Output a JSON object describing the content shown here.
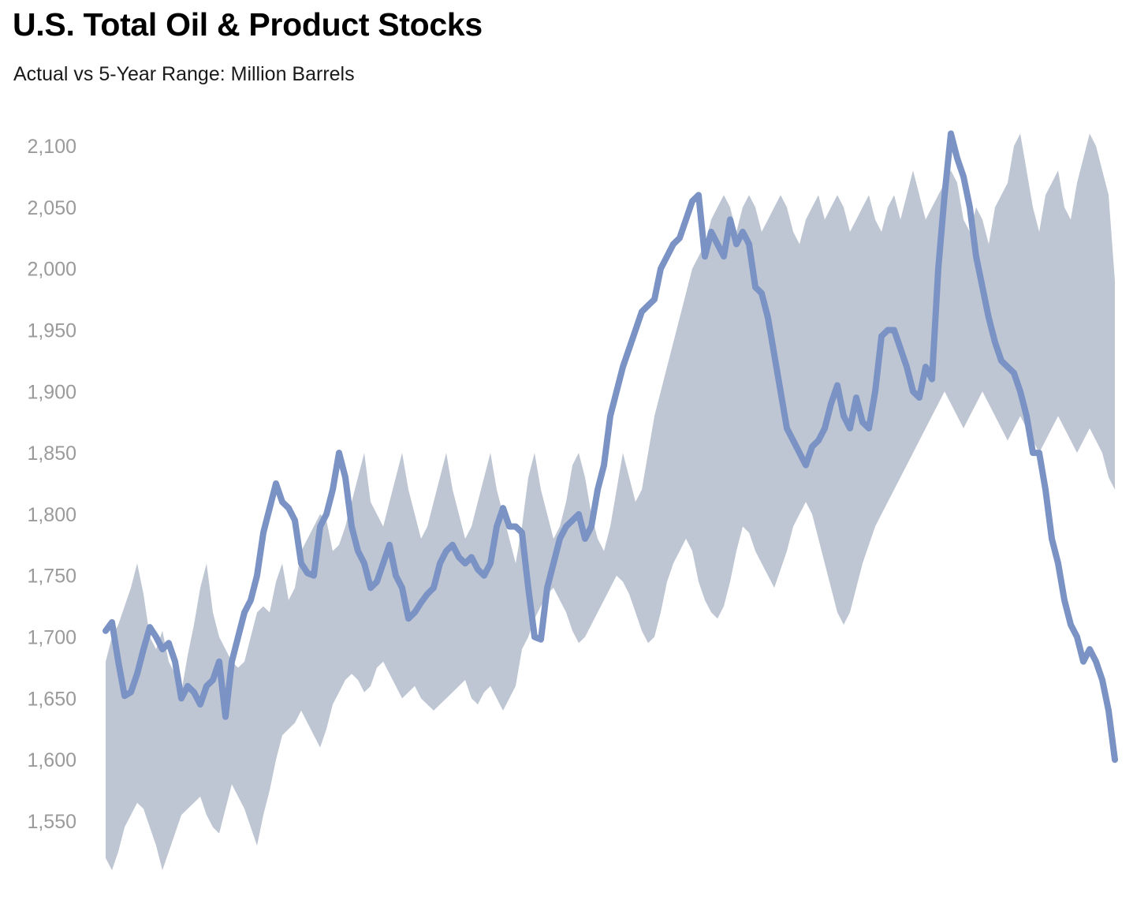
{
  "header": {
    "title": "U.S. Total Oil & Product Stocks",
    "subtitle": "Actual vs 5-Year Range: Million Barrels"
  },
  "chart_data": {
    "type": "line",
    "title": "U.S. Total Oil & Product Stocks",
    "subtitle": "Actual vs 5-Year Range: Million Barrels",
    "xlabel": "",
    "ylabel": "",
    "ylim": [
      1510,
      2120
    ],
    "y_ticks": [
      2100,
      2050,
      2000,
      1950,
      1900,
      1850,
      1800,
      1750,
      1700,
      1650,
      1600,
      1550
    ],
    "y_tick_labels": [
      "2,100",
      "2,050",
      "2,000",
      "1,950",
      "1,900",
      "1,850",
      "1,800",
      "1,750",
      "1,700",
      "1,650",
      "1,600",
      "1,550"
    ],
    "grid": false,
    "legend": "none",
    "colors": {
      "actual_line": "#7b93c4",
      "range_band": "#bfc6d3",
      "tick_text": "#9a9a9a"
    },
    "x": [
      0,
      1,
      2,
      3,
      4,
      5,
      6,
      7,
      8,
      9,
      10,
      11,
      12,
      13,
      14,
      15,
      16,
      17,
      18,
      19,
      20,
      21,
      22,
      23,
      24,
      25,
      26,
      27,
      28,
      29,
      30,
      31,
      32,
      33,
      34,
      35,
      36,
      37,
      38,
      39,
      40,
      41,
      42,
      43,
      44,
      45,
      46,
      47,
      48,
      49,
      50,
      51,
      52,
      53,
      54,
      55,
      56,
      57,
      58,
      59,
      60,
      61,
      62,
      63,
      64,
      65,
      66,
      67,
      68,
      69,
      70,
      71,
      72,
      73,
      74,
      75,
      76,
      77,
      78,
      79,
      80,
      81,
      82,
      83,
      84,
      85,
      86,
      87,
      88,
      89,
      90,
      91,
      92,
      93,
      94,
      95,
      96,
      97,
      98,
      99,
      100,
      101,
      102,
      103,
      104,
      105,
      106,
      107,
      108,
      109,
      110,
      111,
      112,
      113,
      114,
      115,
      116,
      117,
      118,
      119,
      120,
      121,
      122,
      123,
      124,
      125,
      126,
      127,
      128,
      129,
      130,
      131,
      132,
      133,
      134,
      135,
      136,
      137,
      138,
      139,
      140,
      141,
      142,
      143,
      144,
      145,
      146,
      147,
      148,
      149,
      150,
      151,
      152,
      153,
      154,
      155,
      156,
      157,
      158,
      159,
      160
    ],
    "series": [
      {
        "values": [
          1705,
          1712,
          1680,
          1652,
          1655,
          1670,
          1690,
          1708,
          1700,
          1690,
          1695,
          1680,
          1650,
          1660,
          1655,
          1645,
          1660,
          1665,
          1680,
          1635,
          1680,
          1700,
          1720,
          1730,
          1750,
          1785,
          1805,
          1825,
          1810,
          1805,
          1795,
          1760,
          1752,
          1750,
          1790,
          1800,
          1820,
          1850,
          1830,
          1790,
          1770,
          1760,
          1740,
          1745,
          1760,
          1775,
          1750,
          1740,
          1715,
          1720,
          1728,
          1735,
          1740,
          1760,
          1770,
          1775,
          1765,
          1760,
          1765,
          1755,
          1750,
          1760,
          1790,
          1805,
          1790,
          1790,
          1785,
          1740,
          1700,
          1698,
          1740,
          1760,
          1780,
          1790,
          1795,
          1800,
          1780,
          1790,
          1820,
          1840,
          1880,
          1900,
          1920,
          1935,
          1950,
          1965,
          1970,
          1975,
          2000,
          2010,
          2020,
          2025,
          2040,
          2055,
          2060,
          2010,
          2030,
          2020,
          2010,
          2040,
          2020,
          2030,
          2020,
          1985,
          1980,
          1960,
          1930,
          1900,
          1870,
          1860,
          1850,
          1840,
          1855,
          1860,
          1870,
          1890,
          1905,
          1880,
          1870,
          1895,
          1875,
          1870,
          1900,
          1945,
          1950,
          1950,
          1935,
          1920,
          1900,
          1895,
          1920,
          1910,
          2000,
          2060,
          2110,
          2090,
          2075,
          2050,
          2010,
          1985,
          1960,
          1940,
          1925,
          1920,
          1915,
          1900,
          1880,
          1850,
          1850,
          1820,
          1780,
          1760,
          1730,
          1710,
          1700,
          1680,
          1690,
          1680,
          1665,
          1640,
          1600
        ]
      }
    ],
    "range_band": {
      "upper": [
        1680,
        1700,
        1710,
        1725,
        1740,
        1760,
        1735,
        1700,
        1690,
        1705,
        1680,
        1670,
        1655,
        1685,
        1710,
        1740,
        1760,
        1720,
        1700,
        1690,
        1680,
        1675,
        1680,
        1700,
        1720,
        1725,
        1720,
        1745,
        1760,
        1730,
        1740,
        1770,
        1780,
        1790,
        1800,
        1795,
        1770,
        1775,
        1790,
        1810,
        1830,
        1850,
        1810,
        1800,
        1790,
        1810,
        1830,
        1850,
        1820,
        1800,
        1780,
        1790,
        1810,
        1830,
        1850,
        1820,
        1800,
        1780,
        1790,
        1810,
        1830,
        1850,
        1820,
        1800,
        1780,
        1760,
        1790,
        1830,
        1850,
        1820,
        1800,
        1780,
        1790,
        1810,
        1840,
        1850,
        1830,
        1800,
        1780,
        1770,
        1790,
        1820,
        1850,
        1830,
        1810,
        1820,
        1850,
        1880,
        1900,
        1920,
        1940,
        1960,
        1980,
        2000,
        2010,
        2020,
        2040,
        2050,
        2060,
        2050,
        2030,
        2050,
        2060,
        2050,
        2030,
        2040,
        2050,
        2060,
        2050,
        2030,
        2020,
        2040,
        2050,
        2060,
        2040,
        2050,
        2060,
        2050,
        2030,
        2040,
        2050,
        2060,
        2040,
        2030,
        2050,
        2060,
        2040,
        2060,
        2080,
        2060,
        2040,
        2050,
        2060,
        2070,
        2080,
        2070,
        2040,
        2030,
        2050,
        2040,
        2020,
        2050,
        2060,
        2070,
        2100,
        2110,
        2080,
        2050,
        2030,
        2060,
        2070,
        2080,
        2050,
        2040,
        2070,
        2090,
        2110,
        2100,
        2080,
        2060,
        1990
      ],
      "lower": [
        1520,
        1510,
        1525,
        1545,
        1555,
        1565,
        1560,
        1545,
        1530,
        1510,
        1525,
        1540,
        1555,
        1560,
        1565,
        1570,
        1555,
        1545,
        1540,
        1560,
        1580,
        1570,
        1560,
        1545,
        1530,
        1555,
        1575,
        1600,
        1620,
        1625,
        1630,
        1640,
        1630,
        1620,
        1610,
        1625,
        1645,
        1655,
        1665,
        1670,
        1665,
        1655,
        1660,
        1675,
        1680,
        1670,
        1660,
        1650,
        1655,
        1660,
        1650,
        1645,
        1640,
        1645,
        1650,
        1655,
        1660,
        1665,
        1650,
        1645,
        1655,
        1660,
        1650,
        1640,
        1650,
        1660,
        1690,
        1700,
        1715,
        1725,
        1735,
        1740,
        1730,
        1720,
        1705,
        1695,
        1700,
        1710,
        1720,
        1730,
        1740,
        1750,
        1745,
        1735,
        1720,
        1705,
        1695,
        1700,
        1720,
        1745,
        1760,
        1770,
        1780,
        1770,
        1745,
        1730,
        1720,
        1715,
        1725,
        1745,
        1770,
        1790,
        1785,
        1770,
        1760,
        1750,
        1740,
        1755,
        1770,
        1790,
        1800,
        1810,
        1800,
        1780,
        1760,
        1740,
        1720,
        1710,
        1720,
        1740,
        1760,
        1775,
        1790,
        1800,
        1810,
        1820,
        1830,
        1840,
        1850,
        1860,
        1870,
        1880,
        1890,
        1900,
        1890,
        1880,
        1870,
        1880,
        1890,
        1900,
        1890,
        1880,
        1870,
        1860,
        1870,
        1880,
        1870,
        1860,
        1850,
        1860,
        1870,
        1880,
        1870,
        1860,
        1850,
        1860,
        1870,
        1860,
        1850,
        1830,
        1820
      ]
    }
  }
}
